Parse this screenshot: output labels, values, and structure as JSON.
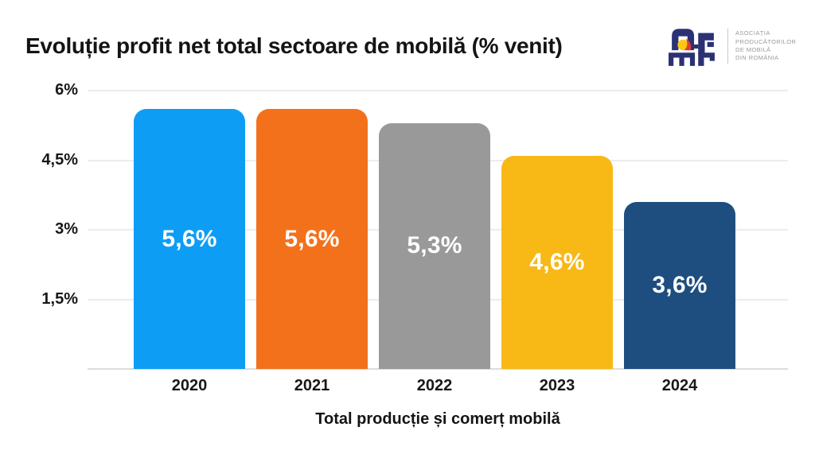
{
  "header": {
    "logo": {
      "org_lines": [
        "ASOCIAȚIA",
        "PRODUCĂTORILOR",
        "DE MOBILĂ",
        "DIN ROMÂNIA"
      ],
      "mark_color": "#2b3173",
      "accent_yellow": "#ffc712",
      "accent_red": "#e23a2e"
    }
  },
  "chart_data": {
    "type": "bar",
    "title": "Evoluție profit net total sectoare de mobilă (% venit)",
    "xlabel": "Total producție și comerț mobilă",
    "ylabel": "",
    "categories": [
      "2020",
      "2021",
      "2022",
      "2023",
      "2024"
    ],
    "values": [
      5.6,
      5.6,
      5.3,
      4.6,
      3.6
    ],
    "value_labels": [
      "5,6%",
      "5,6%",
      "5,3%",
      "4,6%",
      "3,6%"
    ],
    "bar_colors": [
      "#0e9df5",
      "#f4711b",
      "#999999",
      "#f8b816",
      "#1e4e80"
    ],
    "ylim": [
      0,
      6
    ],
    "yticks": [
      1.5,
      3,
      4.5,
      6
    ],
    "ytick_labels": [
      "1,5%",
      "3%",
      "4,5%",
      "6%"
    ],
    "grid": true,
    "legend": false,
    "value_label_color": "#ffffff"
  }
}
